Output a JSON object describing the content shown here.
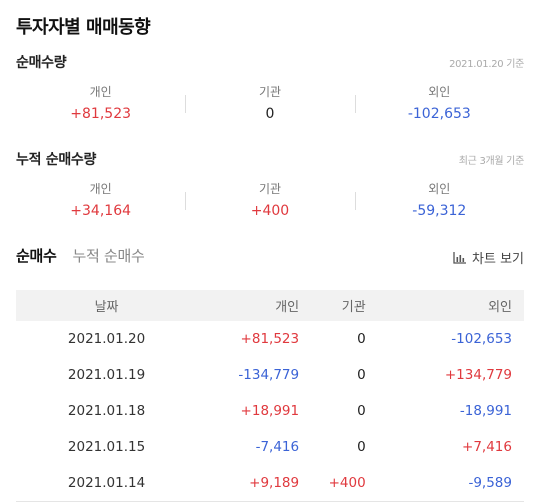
{
  "title": "투자자별 매매동향",
  "net_volume": {
    "title": "순매수량",
    "meta": "2021.01.20 기준",
    "stats": [
      {
        "label": "개인",
        "value": "+81,523",
        "trend": "up"
      },
      {
        "label": "기관",
        "value": "0",
        "trend": "neutral"
      },
      {
        "label": "외인",
        "value": "-102,653",
        "trend": "down"
      }
    ]
  },
  "cumulative_volume": {
    "title": "누적 순매수량",
    "meta": "최근 3개월 기준",
    "stats": [
      {
        "label": "개인",
        "value": "+34,164",
        "trend": "up"
      },
      {
        "label": "기관",
        "value": "+400",
        "trend": "up"
      },
      {
        "label": "외인",
        "value": "-59,312",
        "trend": "down"
      }
    ]
  },
  "tabs": [
    {
      "label": "순매수",
      "active": true
    },
    {
      "label": "누적 순매수",
      "active": false
    }
  ],
  "chart_button": {
    "label": "차트 보기",
    "icon": "bar-chart-icon"
  },
  "table": {
    "headers": {
      "date": "날짜",
      "individual": "개인",
      "institution": "기관",
      "foreign": "외인"
    },
    "rows": [
      {
        "date": "2021.01.20",
        "individual": "+81,523",
        "institution": "0",
        "foreign": "-102,653"
      },
      {
        "date": "2021.01.19",
        "individual": "-134,779",
        "institution": "0",
        "foreign": "+134,779"
      },
      {
        "date": "2021.01.18",
        "individual": "+18,991",
        "institution": "0",
        "foreign": "-18,991"
      },
      {
        "date": "2021.01.15",
        "individual": "-7,416",
        "institution": "0",
        "foreign": "+7,416"
      },
      {
        "date": "2021.01.14",
        "individual": "+9,189",
        "institution": "+400",
        "foreign": "-9,589"
      }
    ]
  },
  "colors": {
    "up": "#e0393e",
    "down": "#3b63d6",
    "neutral": "#222222"
  }
}
